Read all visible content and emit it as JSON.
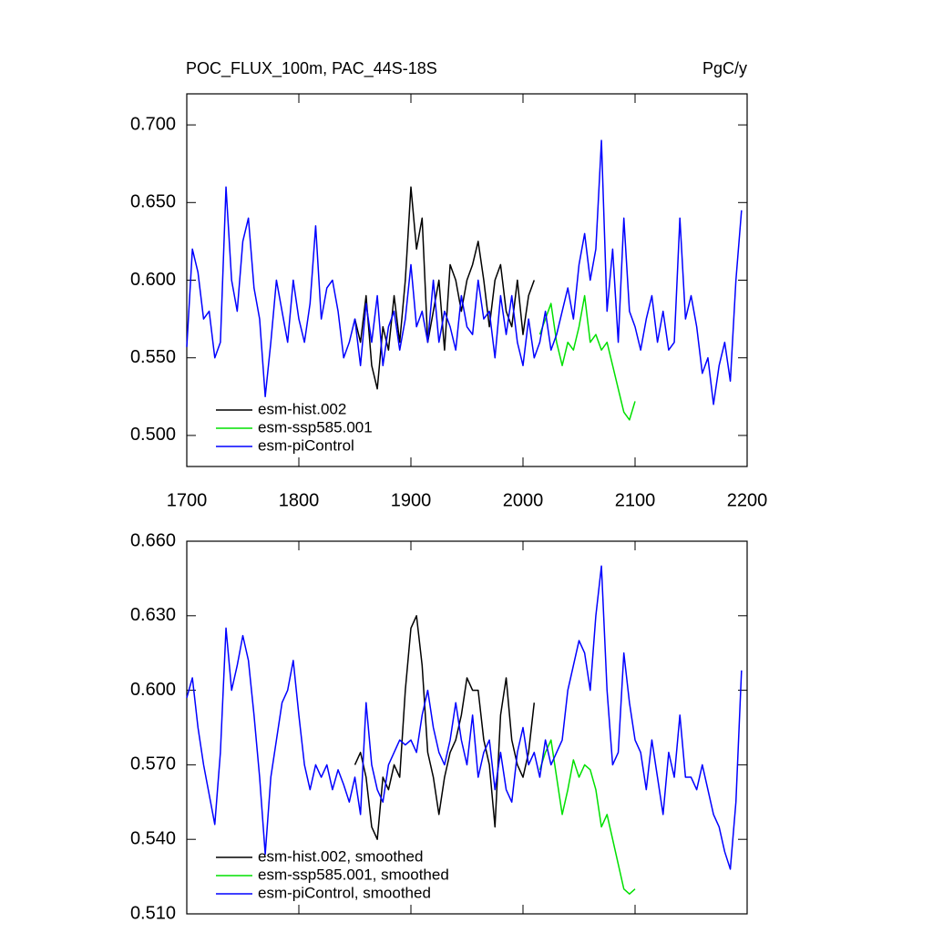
{
  "chart_data": [
    {
      "type": "line",
      "title": "POC_FLUX_100m, PAC_44S-18S",
      "units": "PgC/y",
      "xlim": [
        1700,
        2200
      ],
      "xticks": [
        1700,
        1800,
        1900,
        2000,
        2100,
        2200
      ],
      "ylim": [
        0.48,
        0.72
      ],
      "yticks": [
        {
          "value": 0.5,
          "label": "0.500"
        },
        {
          "value": 0.55,
          "label": "0.550"
        },
        {
          "value": 0.6,
          "label": "0.600"
        },
        {
          "value": 0.65,
          "label": "0.650"
        },
        {
          "value": 0.7,
          "label": "0.700"
        }
      ],
      "legend": "lower left",
      "series": [
        {
          "name": "esm-hist.002",
          "color": "#000000",
          "x": [
            1850,
            1855,
            1860,
            1865,
            1870,
            1875,
            1880,
            1885,
            1890,
            1895,
            1900,
            1905,
            1910,
            1915,
            1920,
            1925,
            1930,
            1935,
            1940,
            1945,
            1950,
            1955,
            1960,
            1965,
            1970,
            1975,
            1980,
            1985,
            1990,
            1995,
            2000,
            2005,
            2010
          ],
          "values": [
            0.575,
            0.56,
            0.59,
            0.545,
            0.53,
            0.57,
            0.555,
            0.59,
            0.56,
            0.6,
            0.66,
            0.62,
            0.64,
            0.56,
            0.58,
            0.6,
            0.555,
            0.61,
            0.6,
            0.58,
            0.6,
            0.61,
            0.625,
            0.6,
            0.57,
            0.6,
            0.61,
            0.58,
            0.57,
            0.6,
            0.565,
            0.59,
            0.6
          ]
        },
        {
          "name": "esm-ssp585.001",
          "color": "#00e000",
          "x": [
            2015,
            2020,
            2025,
            2030,
            2035,
            2040,
            2045,
            2050,
            2055,
            2060,
            2065,
            2070,
            2075,
            2080,
            2085,
            2090,
            2095,
            2100
          ],
          "values": [
            0.565,
            0.575,
            0.585,
            0.56,
            0.545,
            0.56,
            0.555,
            0.57,
            0.59,
            0.56,
            0.565,
            0.555,
            0.56,
            0.545,
            0.53,
            0.515,
            0.51,
            0.522
          ]
        },
        {
          "name": "esm-piControl",
          "color": "#0000ff",
          "x": [
            1700,
            1705,
            1710,
            1715,
            1720,
            1725,
            1730,
            1735,
            1740,
            1745,
            1750,
            1755,
            1760,
            1765,
            1770,
            1775,
            1780,
            1785,
            1790,
            1795,
            1800,
            1805,
            1810,
            1815,
            1820,
            1825,
            1830,
            1835,
            1840,
            1845,
            1850,
            1855,
            1860,
            1865,
            1870,
            1875,
            1880,
            1885,
            1890,
            1895,
            1900,
            1905,
            1910,
            1915,
            1920,
            1925,
            1930,
            1935,
            1940,
            1945,
            1950,
            1955,
            1960,
            1965,
            1970,
            1975,
            1980,
            1985,
            1990,
            1995,
            2000,
            2005,
            2010,
            2015,
            2020,
            2025,
            2030,
            2035,
            2040,
            2045,
            2050,
            2055,
            2060,
            2065,
            2070,
            2075,
            2080,
            2085,
            2090,
            2095,
            2100,
            2105,
            2110,
            2115,
            2120,
            2125,
            2130,
            2135,
            2140,
            2145,
            2150,
            2155,
            2160,
            2165,
            2170,
            2175,
            2180,
            2185,
            2190,
            2195
          ],
          "values": [
            0.557,
            0.62,
            0.605,
            0.575,
            0.58,
            0.55,
            0.56,
            0.66,
            0.6,
            0.58,
            0.625,
            0.64,
            0.595,
            0.575,
            0.525,
            0.56,
            0.6,
            0.58,
            0.56,
            0.6,
            0.575,
            0.56,
            0.585,
            0.635,
            0.575,
            0.595,
            0.6,
            0.58,
            0.55,
            0.56,
            0.575,
            0.545,
            0.585,
            0.56,
            0.59,
            0.545,
            0.57,
            0.58,
            0.555,
            0.575,
            0.61,
            0.57,
            0.58,
            0.56,
            0.6,
            0.56,
            0.58,
            0.57,
            0.555,
            0.59,
            0.57,
            0.565,
            0.6,
            0.575,
            0.58,
            0.55,
            0.59,
            0.565,
            0.59,
            0.56,
            0.545,
            0.575,
            0.55,
            0.56,
            0.58,
            0.555,
            0.565,
            0.58,
            0.595,
            0.575,
            0.61,
            0.63,
            0.6,
            0.62,
            0.69,
            0.58,
            0.62,
            0.56,
            0.64,
            0.58,
            0.57,
            0.555,
            0.575,
            0.59,
            0.56,
            0.58,
            0.555,
            0.56,
            0.64,
            0.575,
            0.59,
            0.57,
            0.54,
            0.55,
            0.52,
            0.545,
            0.56,
            0.535,
            0.6,
            0.645
          ]
        }
      ]
    },
    {
      "type": "line",
      "xlim": [
        1700,
        2200
      ],
      "ylim": [
        0.51,
        0.66
      ],
      "yticks": [
        {
          "value": 0.51,
          "label": "0.510"
        },
        {
          "value": 0.54,
          "label": "0.540"
        },
        {
          "value": 0.57,
          "label": "0.570"
        },
        {
          "value": 0.6,
          "label": "0.600"
        },
        {
          "value": 0.63,
          "label": "0.630"
        },
        {
          "value": 0.66,
          "label": "0.660"
        }
      ],
      "legend": "lower left",
      "series": [
        {
          "name": "esm-hist.002, smoothed",
          "color": "#000000",
          "x": [
            1850,
            1855,
            1860,
            1865,
            1870,
            1875,
            1880,
            1885,
            1890,
            1895,
            1900,
            1905,
            1910,
            1915,
            1920,
            1925,
            1930,
            1935,
            1940,
            1945,
            1950,
            1955,
            1960,
            1965,
            1970,
            1975,
            1980,
            1985,
            1990,
            1995,
            2000,
            2005,
            2010
          ],
          "values": [
            0.57,
            0.575,
            0.565,
            0.545,
            0.54,
            0.565,
            0.56,
            0.57,
            0.565,
            0.6,
            0.625,
            0.63,
            0.61,
            0.575,
            0.565,
            0.55,
            0.565,
            0.575,
            0.58,
            0.59,
            0.605,
            0.6,
            0.6,
            0.58,
            0.57,
            0.545,
            0.59,
            0.605,
            0.58,
            0.57,
            0.565,
            0.575,
            0.595
          ]
        },
        {
          "name": "esm-ssp585.001, smoothed",
          "color": "#00e000",
          "x": [
            2015,
            2020,
            2025,
            2030,
            2035,
            2040,
            2045,
            2050,
            2055,
            2060,
            2065,
            2070,
            2075,
            2080,
            2085,
            2090,
            2095,
            2100
          ],
          "values": [
            0.568,
            0.575,
            0.58,
            0.565,
            0.55,
            0.56,
            0.572,
            0.565,
            0.57,
            0.568,
            0.56,
            0.545,
            0.55,
            0.54,
            0.53,
            0.52,
            0.518,
            0.52
          ]
        },
        {
          "name": "esm-piControl, smoothed",
          "color": "#0000ff",
          "x": [
            1700,
            1705,
            1710,
            1715,
            1720,
            1725,
            1730,
            1735,
            1740,
            1745,
            1750,
            1755,
            1760,
            1765,
            1770,
            1775,
            1780,
            1785,
            1790,
            1795,
            1800,
            1805,
            1810,
            1815,
            1820,
            1825,
            1830,
            1835,
            1840,
            1845,
            1850,
            1855,
            1860,
            1865,
            1870,
            1875,
            1880,
            1885,
            1890,
            1895,
            1900,
            1905,
            1910,
            1915,
            1920,
            1925,
            1930,
            1935,
            1940,
            1945,
            1950,
            1955,
            1960,
            1965,
            1970,
            1975,
            1980,
            1985,
            1990,
            1995,
            2000,
            2005,
            2010,
            2015,
            2020,
            2025,
            2030,
            2035,
            2040,
            2045,
            2050,
            2055,
            2060,
            2065,
            2070,
            2075,
            2080,
            2085,
            2090,
            2095,
            2100,
            2105,
            2110,
            2115,
            2120,
            2125,
            2130,
            2135,
            2140,
            2145,
            2150,
            2155,
            2160,
            2165,
            2170,
            2175,
            2180,
            2185,
            2190,
            2195
          ],
          "values": [
            0.597,
            0.605,
            0.585,
            0.57,
            0.558,
            0.546,
            0.575,
            0.625,
            0.6,
            0.61,
            0.622,
            0.612,
            0.59,
            0.565,
            0.534,
            0.565,
            0.58,
            0.595,
            0.6,
            0.612,
            0.59,
            0.57,
            0.56,
            0.57,
            0.565,
            0.57,
            0.56,
            0.568,
            0.562,
            0.555,
            0.565,
            0.55,
            0.595,
            0.57,
            0.56,
            0.555,
            0.57,
            0.575,
            0.58,
            0.578,
            0.58,
            0.575,
            0.59,
            0.6,
            0.585,
            0.575,
            0.57,
            0.58,
            0.595,
            0.58,
            0.57,
            0.59,
            0.565,
            0.575,
            0.58,
            0.56,
            0.575,
            0.56,
            0.555,
            0.575,
            0.585,
            0.57,
            0.575,
            0.565,
            0.58,
            0.57,
            0.575,
            0.58,
            0.6,
            0.61,
            0.62,
            0.615,
            0.6,
            0.63,
            0.65,
            0.6,
            0.57,
            0.575,
            0.615,
            0.595,
            0.58,
            0.575,
            0.56,
            0.58,
            0.565,
            0.55,
            0.575,
            0.565,
            0.59,
            0.565,
            0.565,
            0.56,
            0.57,
            0.56,
            0.55,
            0.545,
            0.535,
            0.528,
            0.555,
            0.608
          ]
        }
      ]
    }
  ]
}
